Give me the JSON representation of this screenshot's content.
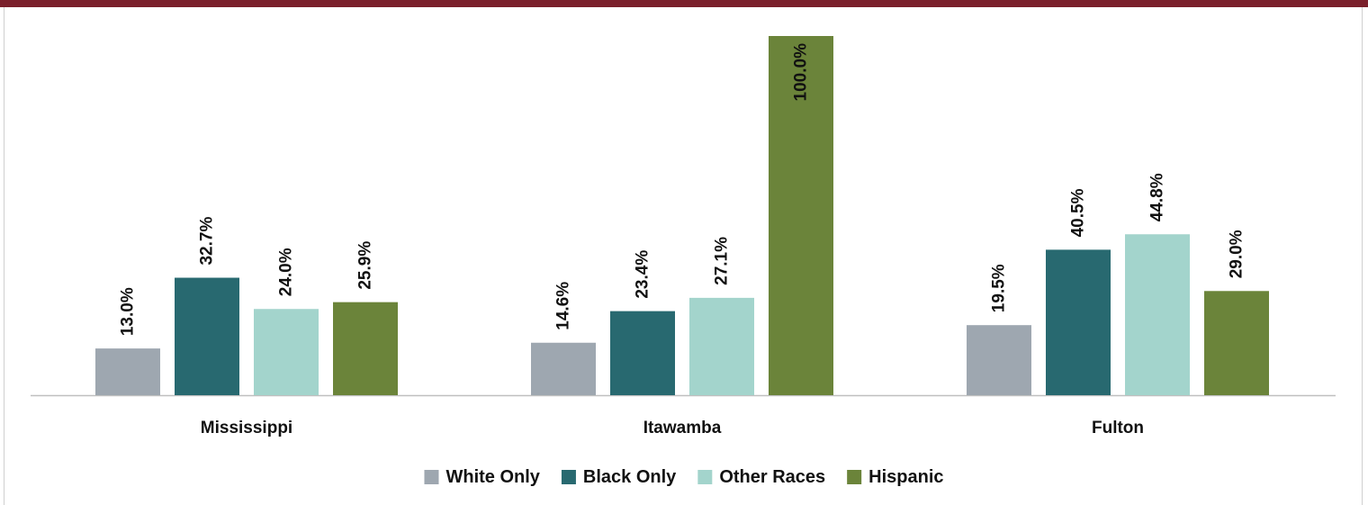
{
  "chart_data": {
    "type": "bar",
    "categories": [
      "Mississippi",
      "Itawamba",
      "Fulton"
    ],
    "series": [
      {
        "name": "White Only",
        "color": "#9ea7b0",
        "values": [
          13.0,
          14.6,
          19.5
        ],
        "labels": [
          "13.0%",
          "14.6%",
          "19.5%"
        ]
      },
      {
        "name": "Black Only",
        "color": "#286970",
        "values": [
          32.7,
          23.4,
          40.5
        ],
        "labels": [
          "32.7%",
          "23.4%",
          "40.5%"
        ]
      },
      {
        "name": "Other Races",
        "color": "#a3d4cc",
        "values": [
          24.0,
          27.1,
          44.8
        ],
        "labels": [
          "24.0%",
          "27.1%",
          "44.8%"
        ]
      },
      {
        "name": "Hispanic",
        "color": "#6b843a",
        "values": [
          25.9,
          100.0,
          29.0
        ],
        "labels": [
          "25.9%",
          "100.0%",
          "29.0%"
        ]
      }
    ],
    "ylim": [
      0,
      100
    ],
    "grid": false,
    "legend": "bottom-center",
    "title": "",
    "xlabel": "",
    "ylabel": ""
  }
}
